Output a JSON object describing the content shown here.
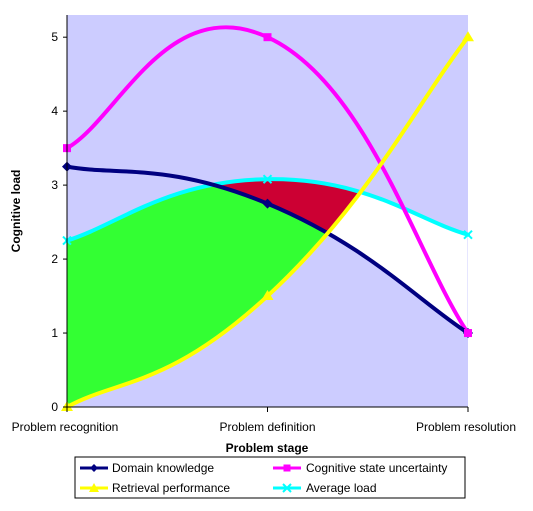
{
  "chart_data": {
    "type": "line",
    "categories": [
      "Problem recognition",
      "Problem definition",
      "Problem resolution"
    ],
    "xlabel": "Problem stage",
    "ylabel": "Cognitive load",
    "ylim": [
      0,
      5.3
    ],
    "yticks": [
      0,
      1,
      2,
      3,
      4,
      5
    ],
    "grid": false,
    "legend_position": "bottom",
    "series": [
      {
        "name": "Domain knowledge",
        "values": [
          3.25,
          2.75,
          1.0
        ],
        "color": "#000080",
        "marker": "diamond"
      },
      {
        "name": "Cognitive state uncertainty",
        "values": [
          3.5,
          5.0,
          1.0
        ],
        "color": "#FF00FF",
        "marker": "square"
      },
      {
        "name": "Retrieval performance",
        "values": [
          0,
          1.5,
          5.0
        ],
        "color": "#FFFF00",
        "marker": "triangle"
      },
      {
        "name": "Average load",
        "values": [
          2.25,
          3.08,
          2.33
        ],
        "color": "#00FFFF",
        "marker": "x"
      }
    ],
    "colors": {
      "plot_background": "#CCCCFF",
      "fill_green": "#33FF33",
      "fill_crimson": "#CC0033",
      "fill_white": "#FFFFFF"
    }
  }
}
